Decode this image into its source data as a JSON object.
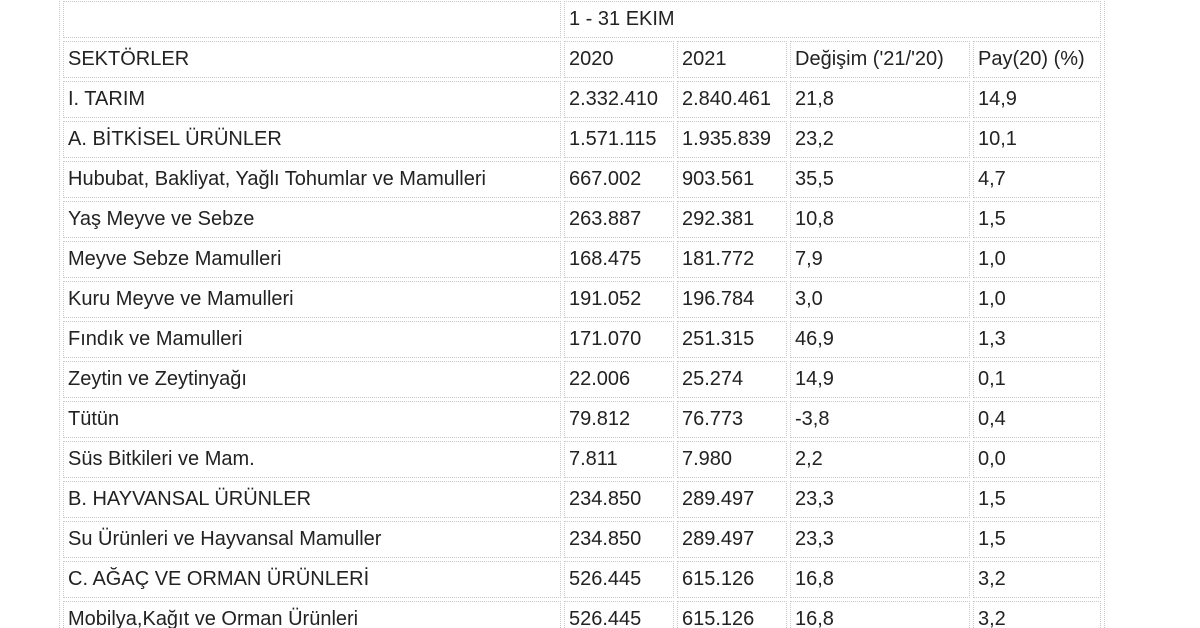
{
  "table": {
    "period": "1 - 31 EKIM",
    "headers": {
      "sector": "SEKTÖRLER",
      "y2020": "2020",
      "y2021": "2021",
      "change": "Değişim ('21/'20)",
      "share": "Pay(20) (%)"
    },
    "rows": [
      {
        "sector": "I. TARIM",
        "y2020": "2.332.410",
        "y2021": "2.840.461",
        "change": "21,8",
        "share": "14,9"
      },
      {
        "sector": "A. BİTKİSEL ÜRÜNLER",
        "y2020": "1.571.115",
        "y2021": "1.935.839",
        "change": "23,2",
        "share": "10,1"
      },
      {
        "sector": "Hububat, Bakliyat, Yağlı Tohumlar ve Mamulleri",
        "y2020": "667.002",
        "y2021": "903.561",
        "change": "35,5",
        "share": "4,7"
      },
      {
        "sector": "Yaş Meyve ve Sebze",
        "y2020": "263.887",
        "y2021": "292.381",
        "change": "10,8",
        "share": "1,5"
      },
      {
        "sector": "Meyve Sebze Mamulleri",
        "y2020": "168.475",
        "y2021": "181.772",
        "change": "7,9",
        "share": "1,0"
      },
      {
        "sector": "Kuru Meyve ve Mamulleri",
        "y2020": "191.052",
        "y2021": "196.784",
        "change": "3,0",
        "share": "1,0"
      },
      {
        "sector": "Fındık ve Mamulleri",
        "y2020": "171.070",
        "y2021": "251.315",
        "change": "46,9",
        "share": "1,3"
      },
      {
        "sector": "Zeytin ve Zeytinyağı",
        "y2020": "22.006",
        "y2021": "25.274",
        "change": "14,9",
        "share": "0,1"
      },
      {
        "sector": "Tütün",
        "y2020": "79.812",
        "y2021": "76.773",
        "change": "-3,8",
        "share": "0,4"
      },
      {
        "sector": "Süs Bitkileri ve Mam.",
        "y2020": "7.811",
        "y2021": "7.980",
        "change": "2,2",
        "share": "0,0"
      },
      {
        "sector": "B. HAYVANSAL ÜRÜNLER",
        "y2020": "234.850",
        "y2021": "289.497",
        "change": "23,3",
        "share": "1,5"
      },
      {
        "sector": "Su Ürünleri ve Hayvansal Mamuller",
        "y2020": "234.850",
        "y2021": "289.497",
        "change": "23,3",
        "share": "1,5"
      },
      {
        "sector": "C. AĞAÇ VE ORMAN ÜRÜNLERİ",
        "y2020": "526.445",
        "y2021": "615.126",
        "change": "16,8",
        "share": "3,2"
      },
      {
        "sector": "Mobilya,Kağıt ve Orman Ürünleri",
        "y2020": "526.445",
        "y2021": "615.126",
        "change": "16,8",
        "share": "3,2"
      }
    ]
  }
}
